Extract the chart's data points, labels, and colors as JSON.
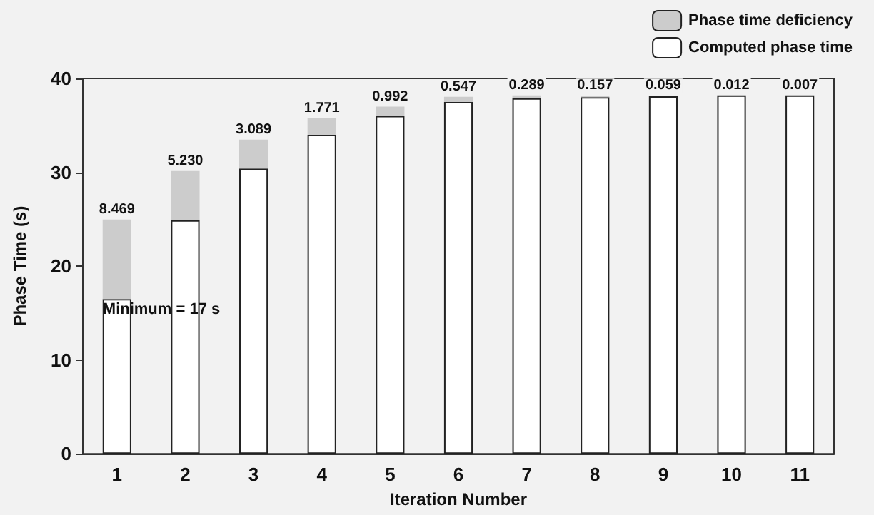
{
  "chart_data": {
    "type": "bar",
    "stacked": true,
    "xlabel": "Iteration Number",
    "ylabel": "Phase Time (s)",
    "categories": [
      "1",
      "2",
      "3",
      "4",
      "5",
      "6",
      "7",
      "8",
      "9",
      "10",
      "11"
    ],
    "series": [
      {
        "name": "Computed phase time",
        "color": "#ffffff",
        "values": [
          16.5,
          24.9,
          30.4,
          34.0,
          36.0,
          37.5,
          37.9,
          38.0,
          38.1,
          38.2,
          38.2
        ]
      },
      {
        "name": "Phase time deficiency",
        "color": "#cccccc",
        "values": [
          8.469,
          5.23,
          3.089,
          1.771,
          0.992,
          0.547,
          0.289,
          0.157,
          0.059,
          0.012,
          0.007
        ],
        "value_labels": [
          "8.469",
          "5.230",
          "3.089",
          "1.771",
          "0.992",
          "0.547",
          "0.289",
          "0.157",
          "0.059",
          "0.012",
          "0.007"
        ]
      }
    ],
    "ylim": [
      0,
      40
    ],
    "yticks": [
      0,
      10,
      20,
      30,
      40
    ],
    "grid": false,
    "legend": "top right",
    "annotations": [
      {
        "text": "Minimum = 17 s",
        "x": "1",
        "y": 17
      }
    ]
  }
}
